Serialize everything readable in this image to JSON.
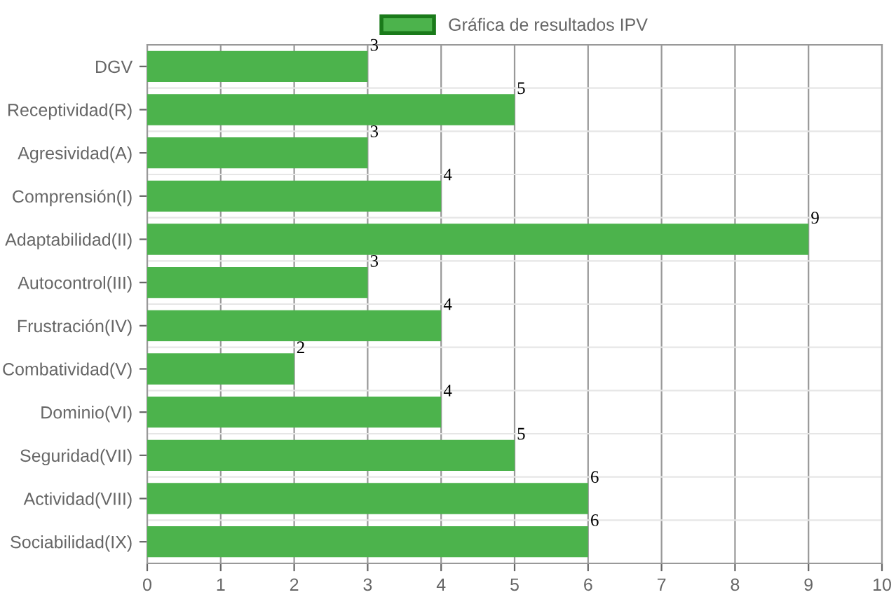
{
  "chart_data": {
    "type": "bar",
    "orientation": "horizontal",
    "categories": [
      "DGV",
      "Receptividad(R)",
      "Agresividad(A)",
      "Comprensión(I)",
      "Adaptabilidad(II)",
      "Autocontrol(III)",
      "Frustración(IV)",
      "Combatividad(V)",
      "Dominio(VI)",
      "Seguridad(VII)",
      "Actividad(VIII)",
      "Sociabilidad(IX)"
    ],
    "series": [
      {
        "name": "Gráfica de resultados IPV",
        "color": "#4cb34c",
        "values": [
          3,
          5,
          3,
          4,
          9,
          3,
          4,
          2,
          4,
          5,
          6,
          6
        ]
      }
    ],
    "xlim": [
      0,
      10
    ],
    "xticks": [
      0,
      1,
      2,
      3,
      4,
      5,
      6,
      7,
      8,
      9,
      10
    ],
    "grid": true,
    "legend": "top",
    "data_labels": true
  }
}
